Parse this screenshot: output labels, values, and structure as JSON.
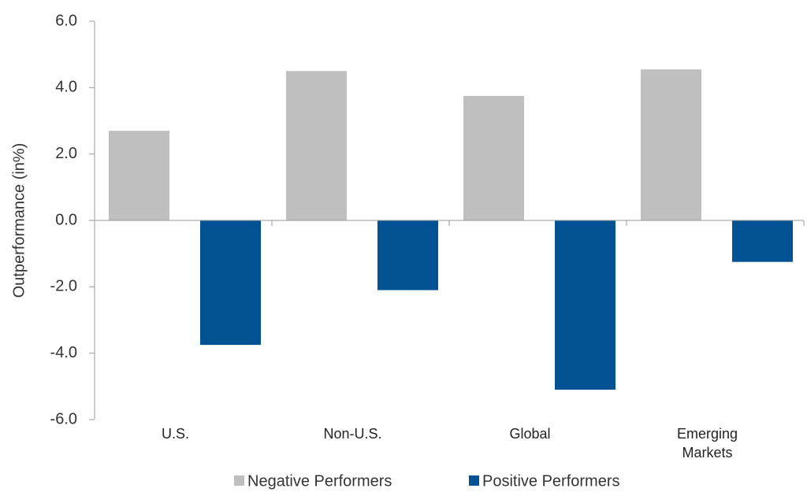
{
  "chart_data": {
    "type": "bar",
    "y_label": "Outperformance (in%)",
    "categories": [
      "U.S.",
      "Non-U.S.",
      "Global",
      "Emerging Markets"
    ],
    "series": [
      {
        "name": "Negative Performers",
        "color": "#bfbfbf",
        "values": [
          2.7,
          4.5,
          3.75,
          4.55
        ]
      },
      {
        "name": "Positive Performers",
        "color": "#005293",
        "values": [
          -3.75,
          -2.1,
          -5.1,
          -1.25
        ]
      }
    ],
    "ylim": [
      -6,
      6
    ],
    "yticks": [
      {
        "value": -6,
        "label": "-6.0"
      },
      {
        "value": -4,
        "label": "-4.0"
      },
      {
        "value": -2,
        "label": "-2.0"
      },
      {
        "value": 0,
        "label": "0.0"
      },
      {
        "value": 2,
        "label": "2.0"
      },
      {
        "value": 4,
        "label": "4.0"
      },
      {
        "value": 6,
        "label": "6.0"
      }
    ],
    "legend": "bottom"
  }
}
